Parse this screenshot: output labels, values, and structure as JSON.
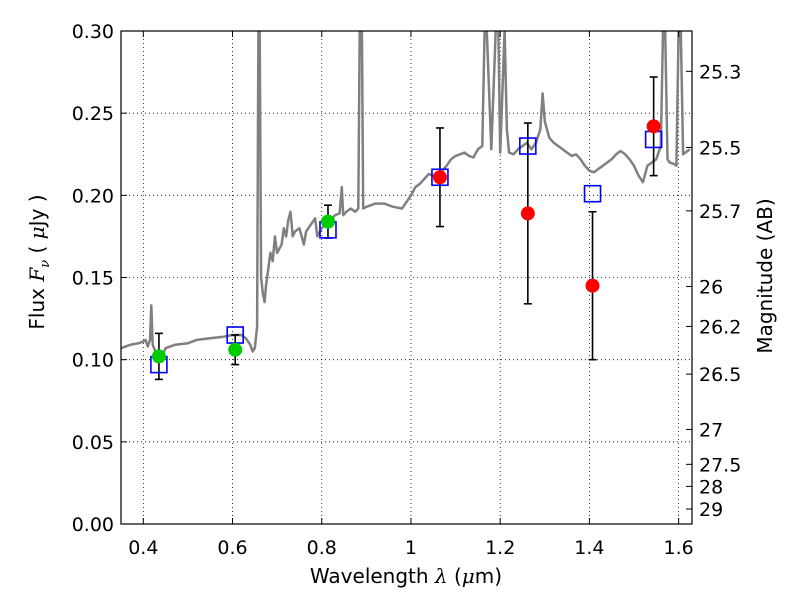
{
  "chart_data": {
    "type": "scatter",
    "xlabel": {
      "prefix": "Wavelength  ",
      "symbol": "λ",
      "open": " (",
      "unit_mu": "μ",
      "unit_rest": "m)"
    },
    "ylabel": {
      "prefix": "Flux  ",
      "symbol": "F",
      "sub": "ν",
      "open": "  (  ",
      "unit_mu": "μ",
      "unit_rest": "Jy )"
    },
    "y2label": "Magnitude (AB)",
    "xlim": [
      0.35,
      1.63
    ],
    "ylim": [
      0.0,
      0.3
    ],
    "grid": true,
    "xticks": [
      {
        "v": 0.4,
        "label": "0.4"
      },
      {
        "v": 0.6,
        "label": "0.6"
      },
      {
        "v": 0.8,
        "label": "0.8"
      },
      {
        "v": 1.0,
        "label": "1"
      },
      {
        "v": 1.2,
        "label": "1.2"
      },
      {
        "v": 1.4,
        "label": "1.4"
      },
      {
        "v": 1.6,
        "label": "1.6"
      }
    ],
    "yticks": [
      {
        "v": 0.0,
        "label": "0.00"
      },
      {
        "v": 0.05,
        "label": "0.05"
      },
      {
        "v": 0.1,
        "label": "0.10"
      },
      {
        "v": 0.15,
        "label": "0.15"
      },
      {
        "v": 0.2,
        "label": "0.20"
      },
      {
        "v": 0.25,
        "label": "0.25"
      },
      {
        "v": 0.3,
        "label": "0.30"
      }
    ],
    "y2ticks": [
      {
        "mag": 25.3,
        "label": "25.3"
      },
      {
        "mag": 25.5,
        "label": "25.5"
      },
      {
        "mag": 25.7,
        "label": "25.7"
      },
      {
        "mag": 26.0,
        "label": "26"
      },
      {
        "mag": 26.2,
        "label": "26.2"
      },
      {
        "mag": 26.5,
        "label": "26.5"
      },
      {
        "mag": 27.0,
        "label": "27"
      },
      {
        "mag": 27.5,
        "label": "27.5"
      },
      {
        "mag": 28.0,
        "label": "28"
      },
      {
        "mag": 29.0,
        "label": "29"
      }
    ],
    "colors": {
      "spectrum": "#808080",
      "model": "#0000ff",
      "optical": "#00cc00",
      "nir": "#ff0000",
      "errorbar": "#000000",
      "grid": "#000000"
    },
    "spectrum": [
      [
        0.35,
        0.107
      ],
      [
        0.37,
        0.109
      ],
      [
        0.39,
        0.11
      ],
      [
        0.4,
        0.111
      ],
      [
        0.405,
        0.112
      ],
      [
        0.41,
        0.108
      ],
      [
        0.415,
        0.112
      ],
      [
        0.418,
        0.133
      ],
      [
        0.421,
        0.109
      ],
      [
        0.43,
        0.103
      ],
      [
        0.44,
        0.101
      ],
      [
        0.445,
        0.104
      ],
      [
        0.45,
        0.107
      ],
      [
        0.47,
        0.109
      ],
      [
        0.5,
        0.11
      ],
      [
        0.52,
        0.112
      ],
      [
        0.55,
        0.113
      ],
      [
        0.58,
        0.114
      ],
      [
        0.6,
        0.115
      ],
      [
        0.62,
        0.115
      ],
      [
        0.63,
        0.113
      ],
      [
        0.64,
        0.109
      ],
      [
        0.645,
        0.105
      ],
      [
        0.65,
        0.107
      ],
      [
        0.655,
        0.12
      ],
      [
        0.658,
        0.3
      ],
      [
        0.661,
        0.3
      ],
      [
        0.664,
        0.15
      ],
      [
        0.668,
        0.14
      ],
      [
        0.672,
        0.135
      ],
      [
        0.675,
        0.145
      ],
      [
        0.68,
        0.155
      ],
      [
        0.685,
        0.165
      ],
      [
        0.69,
        0.16
      ],
      [
        0.695,
        0.175
      ],
      [
        0.7,
        0.165
      ],
      [
        0.71,
        0.17
      ],
      [
        0.715,
        0.18
      ],
      [
        0.72,
        0.175
      ],
      [
        0.725,
        0.185
      ],
      [
        0.73,
        0.19
      ],
      [
        0.735,
        0.175
      ],
      [
        0.74,
        0.178
      ],
      [
        0.75,
        0.18
      ],
      [
        0.76,
        0.17
      ],
      [
        0.765,
        0.178
      ],
      [
        0.775,
        0.182
      ],
      [
        0.785,
        0.186
      ],
      [
        0.79,
        0.175
      ],
      [
        0.8,
        0.18
      ],
      [
        0.81,
        0.183
      ],
      [
        0.82,
        0.185
      ],
      [
        0.83,
        0.188
      ],
      [
        0.84,
        0.189
      ],
      [
        0.845,
        0.205
      ],
      [
        0.848,
        0.188
      ],
      [
        0.855,
        0.19
      ],
      [
        0.865,
        0.192
      ],
      [
        0.875,
        0.19
      ],
      [
        0.882,
        0.192
      ],
      [
        0.885,
        0.3
      ],
      [
        0.89,
        0.3
      ],
      [
        0.893,
        0.192
      ],
      [
        0.9,
        0.193
      ],
      [
        0.92,
        0.195
      ],
      [
        0.94,
        0.195
      ],
      [
        0.96,
        0.193
      ],
      [
        0.98,
        0.192
      ],
      [
        0.99,
        0.196
      ],
      [
        1.0,
        0.2
      ],
      [
        1.01,
        0.205
      ],
      [
        1.02,
        0.207
      ],
      [
        1.03,
        0.21
      ],
      [
        1.04,
        0.213
      ],
      [
        1.05,
        0.212
      ],
      [
        1.06,
        0.213
      ],
      [
        1.07,
        0.215
      ],
      [
        1.08,
        0.218
      ],
      [
        1.09,
        0.222
      ],
      [
        1.1,
        0.224
      ],
      [
        1.11,
        0.225
      ],
      [
        1.12,
        0.226
      ],
      [
        1.13,
        0.224
      ],
      [
        1.14,
        0.223
      ],
      [
        1.15,
        0.228
      ],
      [
        1.16,
        0.23
      ],
      [
        1.165,
        0.3
      ],
      [
        1.17,
        0.3
      ],
      [
        1.18,
        0.228
      ],
      [
        1.19,
        0.3
      ],
      [
        1.196,
        0.3
      ],
      [
        1.2,
        0.226
      ],
      [
        1.21,
        0.3
      ],
      [
        1.215,
        0.24
      ],
      [
        1.22,
        0.226
      ],
      [
        1.23,
        0.225
      ],
      [
        1.24,
        0.228
      ],
      [
        1.25,
        0.23
      ],
      [
        1.26,
        0.232
      ],
      [
        1.27,
        0.228
      ],
      [
        1.28,
        0.232
      ],
      [
        1.29,
        0.24
      ],
      [
        1.295,
        0.262
      ],
      [
        1.3,
        0.245
      ],
      [
        1.31,
        0.235
      ],
      [
        1.32,
        0.232
      ],
      [
        1.33,
        0.23
      ],
      [
        1.34,
        0.228
      ],
      [
        1.35,
        0.226
      ],
      [
        1.36,
        0.224
      ],
      [
        1.37,
        0.225
      ],
      [
        1.38,
        0.222
      ],
      [
        1.39,
        0.218
      ],
      [
        1.4,
        0.215
      ],
      [
        1.41,
        0.214
      ],
      [
        1.42,
        0.216
      ],
      [
        1.43,
        0.218
      ],
      [
        1.44,
        0.22
      ],
      [
        1.45,
        0.222
      ],
      [
        1.46,
        0.225
      ],
      [
        1.47,
        0.227
      ],
      [
        1.48,
        0.225
      ],
      [
        1.49,
        0.222
      ],
      [
        1.5,
        0.218
      ],
      [
        1.51,
        0.212
      ],
      [
        1.52,
        0.208
      ],
      [
        1.53,
        0.218
      ],
      [
        1.54,
        0.22
      ],
      [
        1.55,
        0.222
      ],
      [
        1.56,
        0.23
      ],
      [
        1.565,
        0.3
      ],
      [
        1.57,
        0.3
      ],
      [
        1.575,
        0.222
      ],
      [
        1.58,
        0.22
      ],
      [
        1.59,
        0.219
      ],
      [
        1.595,
        0.218
      ],
      [
        1.6,
        0.3
      ],
      [
        1.605,
        0.3
      ],
      [
        1.61,
        0.225
      ],
      [
        1.625,
        0.228
      ]
    ],
    "model_points": [
      {
        "x": 0.435,
        "y": 0.097
      },
      {
        "x": 0.606,
        "y": 0.115
      },
      {
        "x": 0.814,
        "y": 0.179
      },
      {
        "x": 1.065,
        "y": 0.211
      },
      {
        "x": 1.262,
        "y": 0.23
      },
      {
        "x": 1.407,
        "y": 0.201
      },
      {
        "x": 1.544,
        "y": 0.234
      }
    ],
    "optical_points": [
      {
        "x": 0.435,
        "y": 0.102,
        "err": 0.014
      },
      {
        "x": 0.606,
        "y": 0.106,
        "err": 0.009
      },
      {
        "x": 0.814,
        "y": 0.184,
        "err": 0.01
      }
    ],
    "nir_points": [
      {
        "x": 1.065,
        "y": 0.211,
        "err": 0.03
      },
      {
        "x": 1.262,
        "y": 0.189,
        "err": 0.055
      },
      {
        "x": 1.407,
        "y": 0.145,
        "err": 0.045
      },
      {
        "x": 1.544,
        "y": 0.242,
        "err": 0.03
      }
    ]
  }
}
